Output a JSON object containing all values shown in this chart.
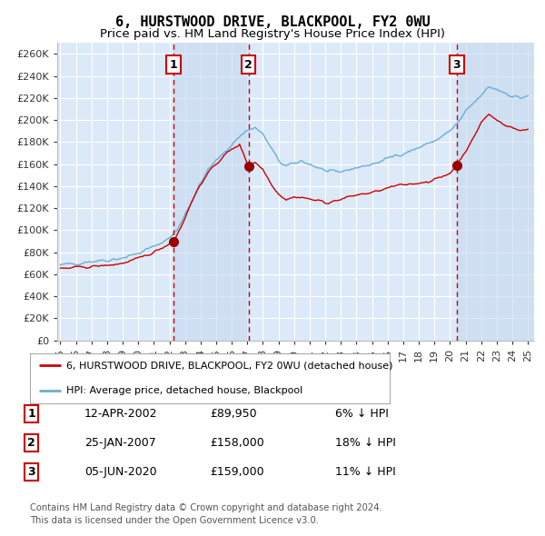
{
  "title": "6, HURSTWOOD DRIVE, BLACKPOOL, FY2 0WU",
  "subtitle": "Price paid vs. HM Land Registry's House Price Index (HPI)",
  "ylim": [
    0,
    270000
  ],
  "yticks": [
    0,
    20000,
    40000,
    60000,
    80000,
    100000,
    120000,
    140000,
    160000,
    180000,
    200000,
    220000,
    240000,
    260000
  ],
  "ytick_labels": [
    "£0",
    "£20K",
    "£40K",
    "£60K",
    "£80K",
    "£100K",
    "£120K",
    "£140K",
    "£160K",
    "£180K",
    "£200K",
    "£220K",
    "£240K",
    "£260K"
  ],
  "background_color": "#ffffff",
  "plot_bg_color": "#dce9f8",
  "grid_color": "#ffffff",
  "hpi_line_color": "#6aaed6",
  "price_line_color": "#cc0000",
  "sale_marker_color": "#990000",
  "dashed_line_color": "#cc0000",
  "purchases": [
    {
      "date_num": 2002.28,
      "price": 89950,
      "label": "1"
    },
    {
      "date_num": 2007.07,
      "price": 158000,
      "label": "2"
    },
    {
      "date_num": 2020.43,
      "price": 159000,
      "label": "3"
    }
  ],
  "hpi_anchors_x": [
    1995.0,
    1996.0,
    1997.0,
    1998.0,
    1999.0,
    2000.0,
    2001.0,
    2002.0,
    2002.5,
    2003.0,
    2003.5,
    2004.0,
    2004.5,
    2005.0,
    2005.5,
    2006.0,
    2006.5,
    2007.0,
    2007.5,
    2008.0,
    2008.5,
    2009.0,
    2009.5,
    2010.0,
    2010.5,
    2011.0,
    2011.5,
    2012.0,
    2012.5,
    2013.0,
    2013.5,
    2014.0,
    2014.5,
    2015.0,
    2015.5,
    2016.0,
    2016.5,
    2017.0,
    2017.5,
    2018.0,
    2018.5,
    2019.0,
    2019.5,
    2020.0,
    2020.5,
    2021.0,
    2021.5,
    2022.0,
    2022.5,
    2023.0,
    2023.5,
    2024.0,
    2024.5,
    2025.0
  ],
  "hpi_anchors_y": [
    68000,
    70000,
    72000,
    73000,
    75000,
    79000,
    85000,
    93000,
    100000,
    115000,
    128000,
    143000,
    155000,
    163000,
    170000,
    178000,
    185000,
    191000,
    193000,
    187000,
    175000,
    163000,
    158000,
    160000,
    163000,
    160000,
    157000,
    154000,
    152000,
    153000,
    155000,
    157000,
    158000,
    160000,
    162000,
    165000,
    168000,
    170000,
    172000,
    175000,
    178000,
    181000,
    185000,
    190000,
    197000,
    207000,
    215000,
    222000,
    230000,
    228000,
    225000,
    222000,
    220000,
    222000
  ],
  "red_anchors_x": [
    1995.0,
    1996.0,
    1997.0,
    1998.0,
    1999.0,
    2000.0,
    2001.0,
    2001.5,
    2002.0,
    2002.28,
    2002.8,
    2003.5,
    2004.0,
    2004.5,
    2005.0,
    2005.5,
    2006.0,
    2006.5,
    2007.07,
    2007.5,
    2008.0,
    2008.5,
    2009.0,
    2009.5,
    2010.0,
    2010.5,
    2011.0,
    2011.5,
    2012.0,
    2012.5,
    2013.0,
    2013.5,
    2014.0,
    2014.5,
    2015.0,
    2015.5,
    2016.0,
    2016.5,
    2017.0,
    2017.5,
    2018.0,
    2018.5,
    2019.0,
    2019.5,
    2020.0,
    2020.43,
    2021.0,
    2021.5,
    2022.0,
    2022.5,
    2023.0,
    2023.5,
    2024.0,
    2024.5,
    2025.0
  ],
  "red_anchors_y": [
    65000,
    66000,
    67000,
    68000,
    70000,
    74000,
    80000,
    84000,
    88000,
    89950,
    105000,
    128000,
    142000,
    152000,
    160000,
    168000,
    173000,
    178000,
    158000,
    162000,
    155000,
    143000,
    133000,
    128000,
    130000,
    130000,
    128000,
    127000,
    125000,
    126000,
    128000,
    130000,
    132000,
    133000,
    134000,
    136000,
    138000,
    140000,
    141000,
    142000,
    143000,
    144000,
    146000,
    148000,
    152000,
    159000,
    172000,
    183000,
    198000,
    205000,
    200000,
    196000,
    193000,
    190000,
    192000
  ],
  "legend_entries": [
    "6, HURSTWOOD DRIVE, BLACKPOOL, FY2 0WU (detached house)",
    "HPI: Average price, detached house, Blackpool"
  ],
  "table_rows": [
    {
      "num": "1",
      "date": "12-APR-2002",
      "price": "£89,950",
      "hpi": "6% ↓ HPI"
    },
    {
      "num": "2",
      "date": "25-JAN-2007",
      "price": "£158,000",
      "hpi": "18% ↓ HPI"
    },
    {
      "num": "3",
      "date": "05-JUN-2020",
      "price": "£159,000",
      "hpi": "11% ↓ HPI"
    }
  ],
  "footer": [
    "Contains HM Land Registry data © Crown copyright and database right 2024.",
    "This data is licensed under the Open Government Licence v3.0."
  ],
  "title_fontsize": 11,
  "subtitle_fontsize": 9.5,
  "tick_fontsize": 8,
  "xlim": [
    1994.8,
    2025.4
  ]
}
